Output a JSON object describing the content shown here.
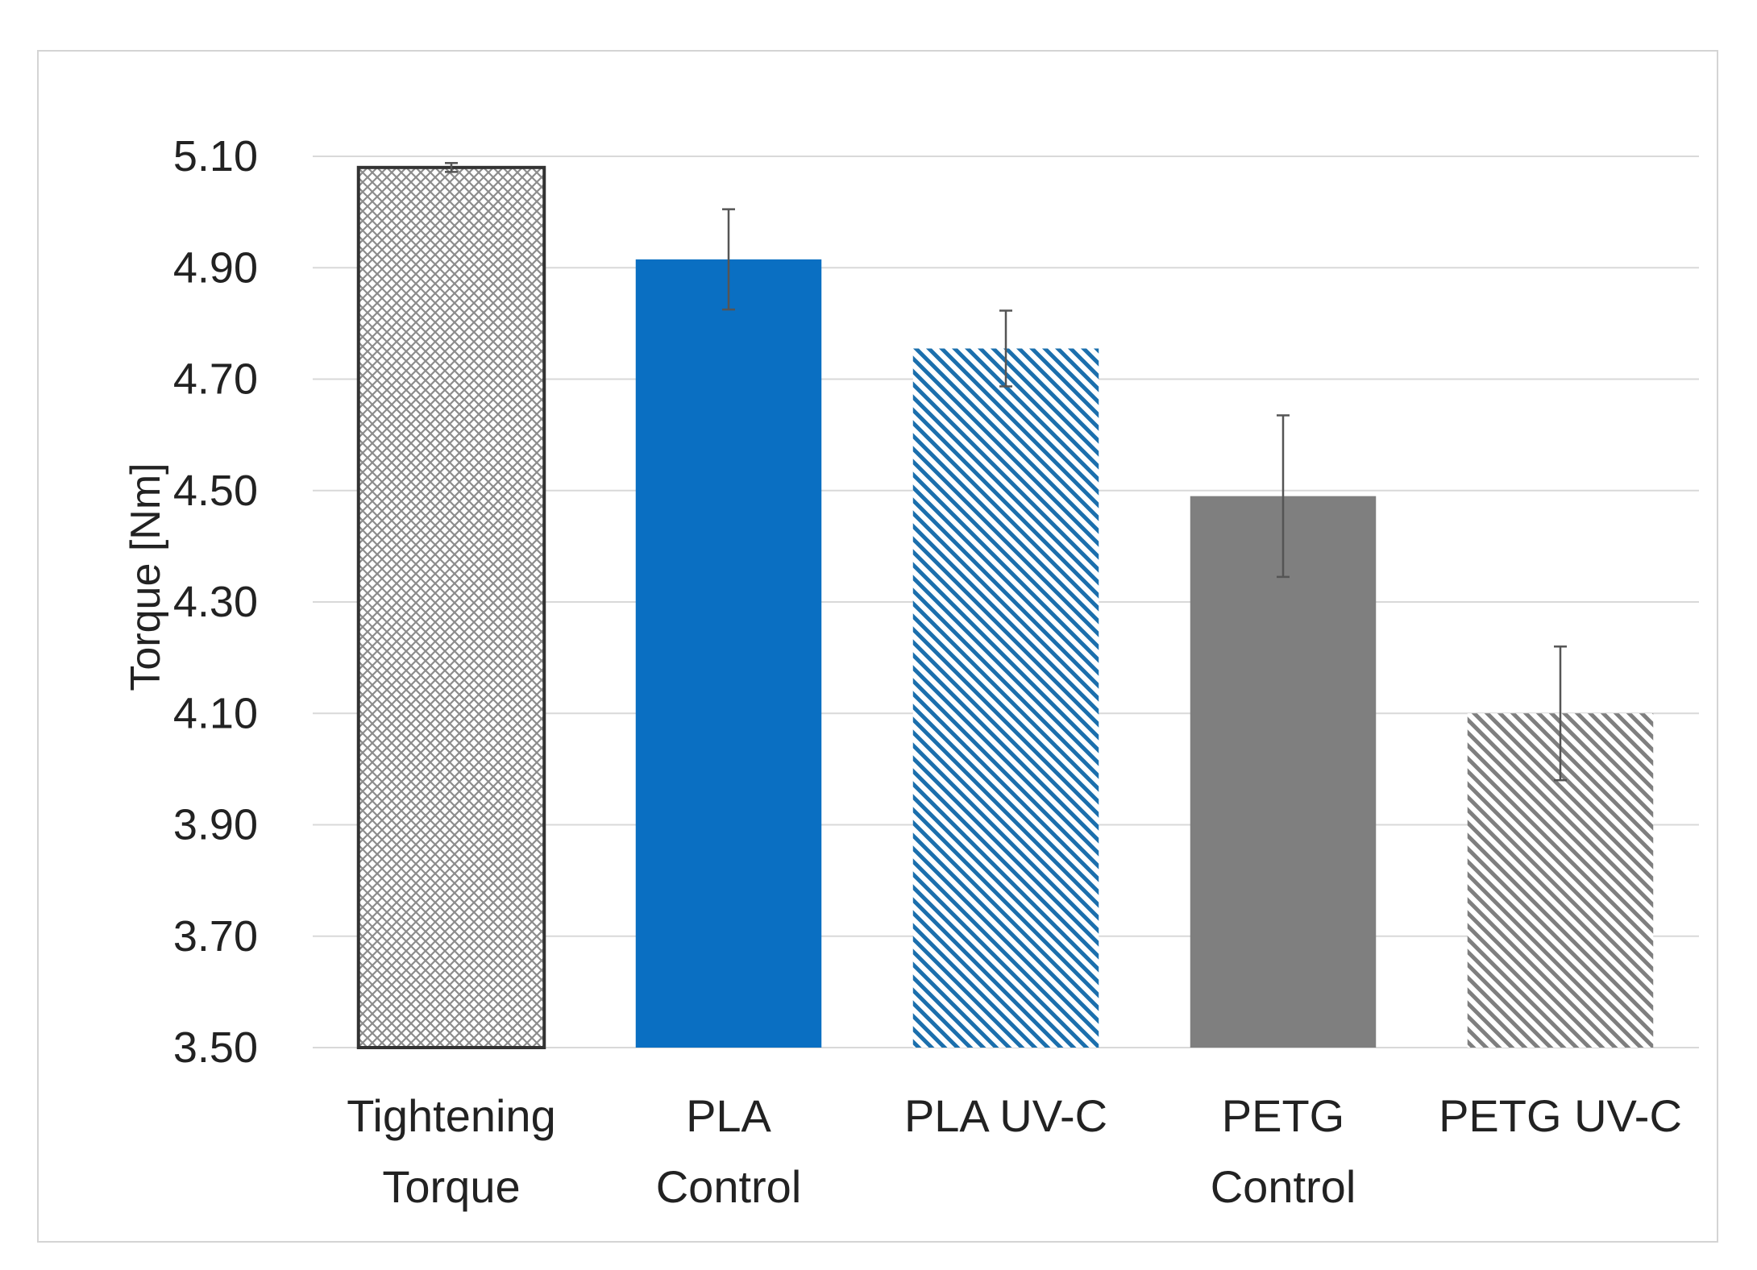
{
  "chart_data": {
    "type": "bar",
    "title": "",
    "xlabel": "",
    "ylabel": "Torque [Nm]",
    "ylim": [
      3.5,
      5.1
    ],
    "yticks": [
      3.5,
      3.7,
      3.9,
      4.1,
      4.3,
      4.5,
      4.7,
      4.9,
      5.1
    ],
    "ytick_labels": [
      "3.50",
      "3.70",
      "3.90",
      "4.10",
      "4.30",
      "4.50",
      "4.70",
      "4.90",
      "5.10"
    ],
    "grid": true,
    "legend": "none",
    "categories": [
      {
        "lines": [
          "Tightening",
          "Torque"
        ]
      },
      {
        "lines": [
          "PLA",
          "Control"
        ]
      },
      {
        "lines": [
          "PLA UV-C"
        ]
      },
      {
        "lines": [
          "PETG",
          "Control"
        ]
      },
      {
        "lines": [
          "PETG UV-C"
        ]
      }
    ],
    "values": [
      5.08,
      4.915,
      4.755,
      4.49,
      4.1
    ],
    "errors": [
      0.008,
      0.09,
      0.068,
      0.145,
      0.12
    ],
    "styles": [
      {
        "fill": "crosshatch",
        "color": "#8c8c8c",
        "outline": "#333333"
      },
      {
        "fill": "solid",
        "color": "#0a6fc2"
      },
      {
        "fill": "diagonal",
        "color": "#1b6fad"
      },
      {
        "fill": "solid",
        "color": "#7f7f7f"
      },
      {
        "fill": "diagonal",
        "color": "#7f7f7f"
      }
    ],
    "colors": {
      "grid": "#d9d9d9",
      "error_bar": "#555555",
      "text": "#222222"
    }
  }
}
